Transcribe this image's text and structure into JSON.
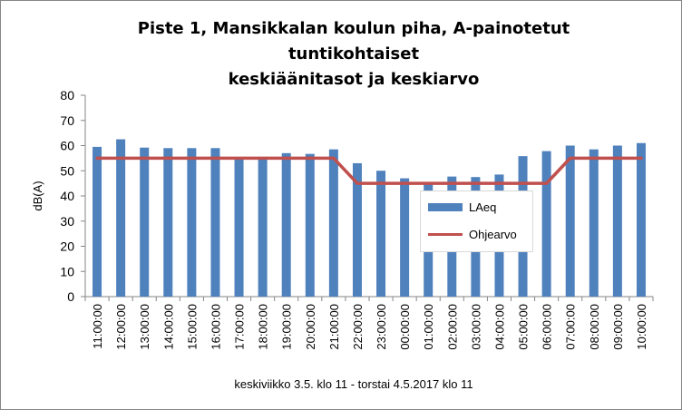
{
  "chart_data": {
    "type": "bar",
    "title_lines": [
      "Piste 1, Mansikkalan koulun piha, A-painotetut tuntikohtaiset",
      "keskiäänitasot ja keskiarvo"
    ],
    "xlabel": "keskiviikko 3.5. klo 11 - torstai 4.5.2017 klo 11",
    "ylabel": "dB(A)",
    "ylim": [
      0,
      80
    ],
    "yticks": [
      0,
      10,
      20,
      30,
      40,
      50,
      60,
      70,
      80
    ],
    "grid": false,
    "legend_position": "right",
    "categories": [
      "11:00:00",
      "12:00:00",
      "13:00:00",
      "14:00:00",
      "15:00:00",
      "16:00:00",
      "17:00:00",
      "18:00:00",
      "19:00:00",
      "20:00:00",
      "21:00:00",
      "22:00:00",
      "23:00:00",
      "00:00:00",
      "01:00:00",
      "02:00:00",
      "03:00:00",
      "04:00:00",
      "05:00:00",
      "06:00:00",
      "07:00:00",
      "08:00:00",
      "09:00:00",
      "10:00:00"
    ],
    "series": [
      {
        "name": "LAeq",
        "type": "bar",
        "color": "#4f81bd",
        "values": [
          59.5,
          62.5,
          59.2,
          59.0,
          59.0,
          59.0,
          54.5,
          55.0,
          57.0,
          56.7,
          58.5,
          53.0,
          50.0,
          47.0,
          45.0,
          47.7,
          47.5,
          48.5,
          55.8,
          57.8,
          60.0,
          58.5,
          60.0,
          61.0
        ]
      },
      {
        "name": "Ohjearvo",
        "type": "line",
        "color": "#c0504d",
        "values": [
          55,
          55,
          55,
          55,
          55,
          55,
          55,
          55,
          55,
          55,
          55,
          45,
          45,
          45,
          45,
          45,
          45,
          45,
          45,
          45,
          55,
          55,
          55,
          55
        ]
      }
    ]
  }
}
